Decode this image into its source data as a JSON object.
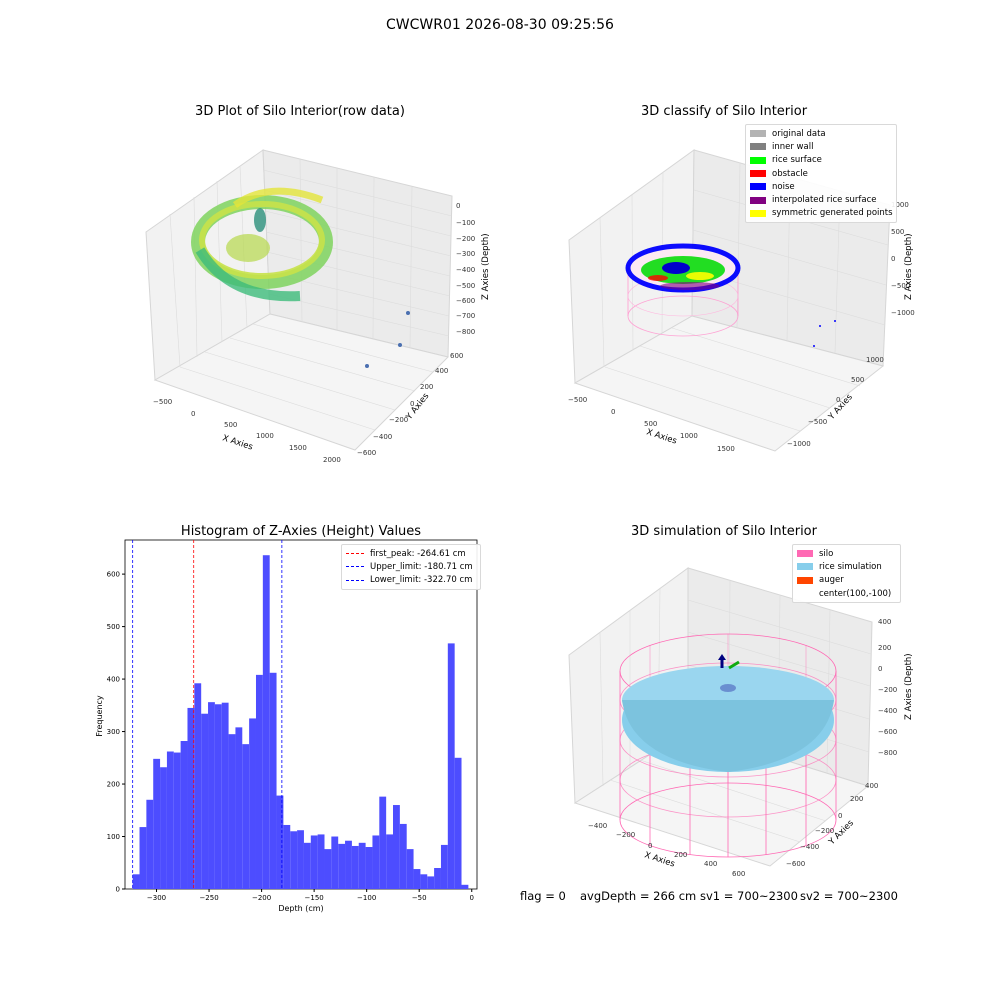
{
  "figure": {
    "suptitle": "CWCWR01 2026-08-30 09:25:56",
    "status": {
      "flag": "flag = 0",
      "avg_depth": "avgDepth = 266 cm",
      "sv1": "sv1 = 700~2300",
      "sv2": "sv2 = 700~2300"
    }
  },
  "colors": {
    "original_data": "#b3b3b3",
    "inner_wall": "#808080",
    "rice_surface": "#00ff00",
    "obstacle": "#ff0000",
    "noise": "#0000ff",
    "interpolated_rice_surface": "#800080",
    "symmetric_generated_points": "#ffff00",
    "silo": "#ff69b4",
    "rice_simulation": "#87ceeb",
    "auger": "#ff4500",
    "histogram_bar": "#4d4dff"
  },
  "chart_data": [
    {
      "type": "scatter",
      "title": "3D Plot of Silo Interior(row data)",
      "xlabel": "X Axies",
      "ylabel": "Y Axies",
      "zlabel": "Z Axies (Depth)",
      "x_ticks": [
        "−500",
        "0",
        "500",
        "1000",
        "1500",
        "2000"
      ],
      "y_ticks": [
        "−600",
        "−400",
        "−200",
        "0",
        "200",
        "400",
        "600"
      ],
      "z_ticks": [
        "0",
        "−100",
        "−200",
        "−300",
        "−400",
        "−500",
        "−600",
        "−700",
        "−800"
      ],
      "outlier_points": [
        {
          "x": 1800,
          "y": -100,
          "z": -780
        },
        {
          "x": 1700,
          "y": 350,
          "z": -720
        },
        {
          "x": 1550,
          "y": 500,
          "z": -640
        }
      ]
    },
    {
      "type": "scatter",
      "title": "3D classify of Silo Interior",
      "xlabel": "X Axies",
      "ylabel": "Y Axies",
      "zlabel": "Z Axies (Depth)",
      "x_ticks": [
        "−500",
        "0",
        "500",
        "1000",
        "1500"
      ],
      "y_ticks": [
        "−1000",
        "−500",
        "0",
        "500",
        "1000"
      ],
      "z_ticks": [
        "1000",
        "500",
        "0",
        "−500",
        "−1000"
      ],
      "legend": [
        {
          "label": "original data",
          "color": "#b3b3b3"
        },
        {
          "label": "inner wall",
          "color": "#808080"
        },
        {
          "label": "rice surface",
          "color": "#00ff00"
        },
        {
          "label": "obstacle",
          "color": "#ff0000"
        },
        {
          "label": "noise",
          "color": "#0000ff"
        },
        {
          "label": "interpolated rice surface",
          "color": "#800080"
        },
        {
          "label": "symmetric generated points",
          "color": "#ffff00"
        }
      ],
      "legend_position": "top-right"
    },
    {
      "type": "bar",
      "title": "Histogram of Z-Axies (Height) Values",
      "xlabel": "Depth (cm)",
      "ylabel": "Frequency",
      "xlim": [
        -330,
        5
      ],
      "ylim": [
        0,
        665
      ],
      "x_ticks": [
        -300,
        -250,
        -200,
        -150,
        -100,
        -50,
        0
      ],
      "y_ticks": [
        0,
        100,
        200,
        300,
        400,
        500,
        600
      ],
      "bin_start": -322.7,
      "bin_width": 6.52,
      "values": [
        28,
        118,
        170,
        248,
        232,
        262,
        260,
        282,
        345,
        392,
        334,
        356,
        352,
        355,
        295,
        308,
        276,
        325,
        408,
        636,
        412,
        178,
        122,
        110,
        112,
        88,
        102,
        104,
        76,
        100,
        86,
        92,
        82,
        88,
        80,
        102,
        176,
        104,
        160,
        124,
        76,
        38,
        28,
        24,
        40,
        84,
        468,
        250,
        8
      ],
      "vlines": [
        {
          "label": "first_peak: -264.61 cm",
          "x": -264.61,
          "color": "#ff0000"
        },
        {
          "label": "Upper_limit: -180.71 cm",
          "x": -180.71,
          "color": "#0000ff"
        },
        {
          "label": "Lower_limit: -322.70 cm",
          "x": -322.7,
          "color": "#0000ff"
        }
      ],
      "legend_position": "top-right"
    },
    {
      "type": "scatter",
      "title": "3D simulation of Silo Interior",
      "xlabel": "X Axies",
      "ylabel": "Y Axies",
      "zlabel": "Z Axies (Depth)",
      "x_ticks": [
        "−400",
        "−200",
        "0",
        "200",
        "400",
        "600"
      ],
      "y_ticks": [
        "400",
        "200",
        "0",
        "−200",
        "−400",
        "−600"
      ],
      "z_ticks": [
        "400",
        "200",
        "0",
        "−200",
        "−400",
        "−600",
        "−800"
      ],
      "legend": [
        {
          "label": "silo",
          "color": "#ff69b4"
        },
        {
          "label": "rice simulation",
          "color": "#87ceeb"
        },
        {
          "label": "auger",
          "color": "#ff4500"
        },
        {
          "label": "center(100,-100)",
          "color": ""
        }
      ],
      "legend_position": "top-right"
    }
  ]
}
